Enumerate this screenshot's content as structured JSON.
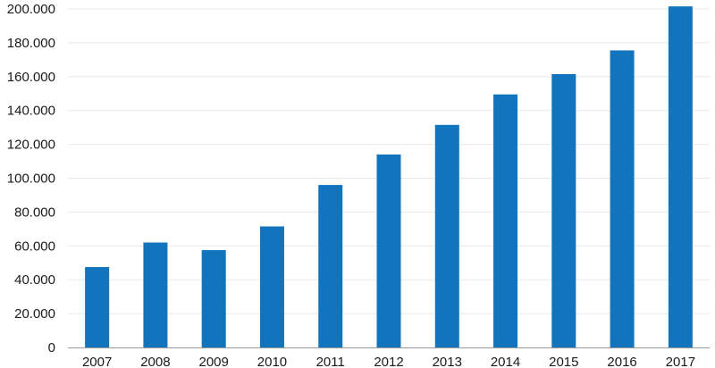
{
  "chart_data": {
    "type": "bar",
    "title": "",
    "xlabel": "",
    "ylabel": "",
    "categories": [
      "2007",
      "2008",
      "2009",
      "2010",
      "2011",
      "2012",
      "2013",
      "2014",
      "2015",
      "2016",
      "2017"
    ],
    "values": [
      47500,
      62000,
      57500,
      71500,
      96000,
      114000,
      131500,
      149500,
      161500,
      175500,
      201500
    ],
    "ylim": [
      0,
      200000
    ],
    "yticks": [
      0,
      20000,
      40000,
      60000,
      80000,
      100000,
      120000,
      140000,
      160000,
      180000,
      200000
    ],
    "ytick_labels": [
      "0",
      "20.000",
      "40.000",
      "60.000",
      "80.000",
      "100.000",
      "120.000",
      "140.000",
      "160.000",
      "180.000",
      "200.000"
    ],
    "grid": true,
    "legend": "none",
    "colors": {
      "bar": "#1174bc",
      "grid": "#e8e8e8",
      "axis": "#9a9a9a",
      "text": "#1a1a1a"
    }
  }
}
